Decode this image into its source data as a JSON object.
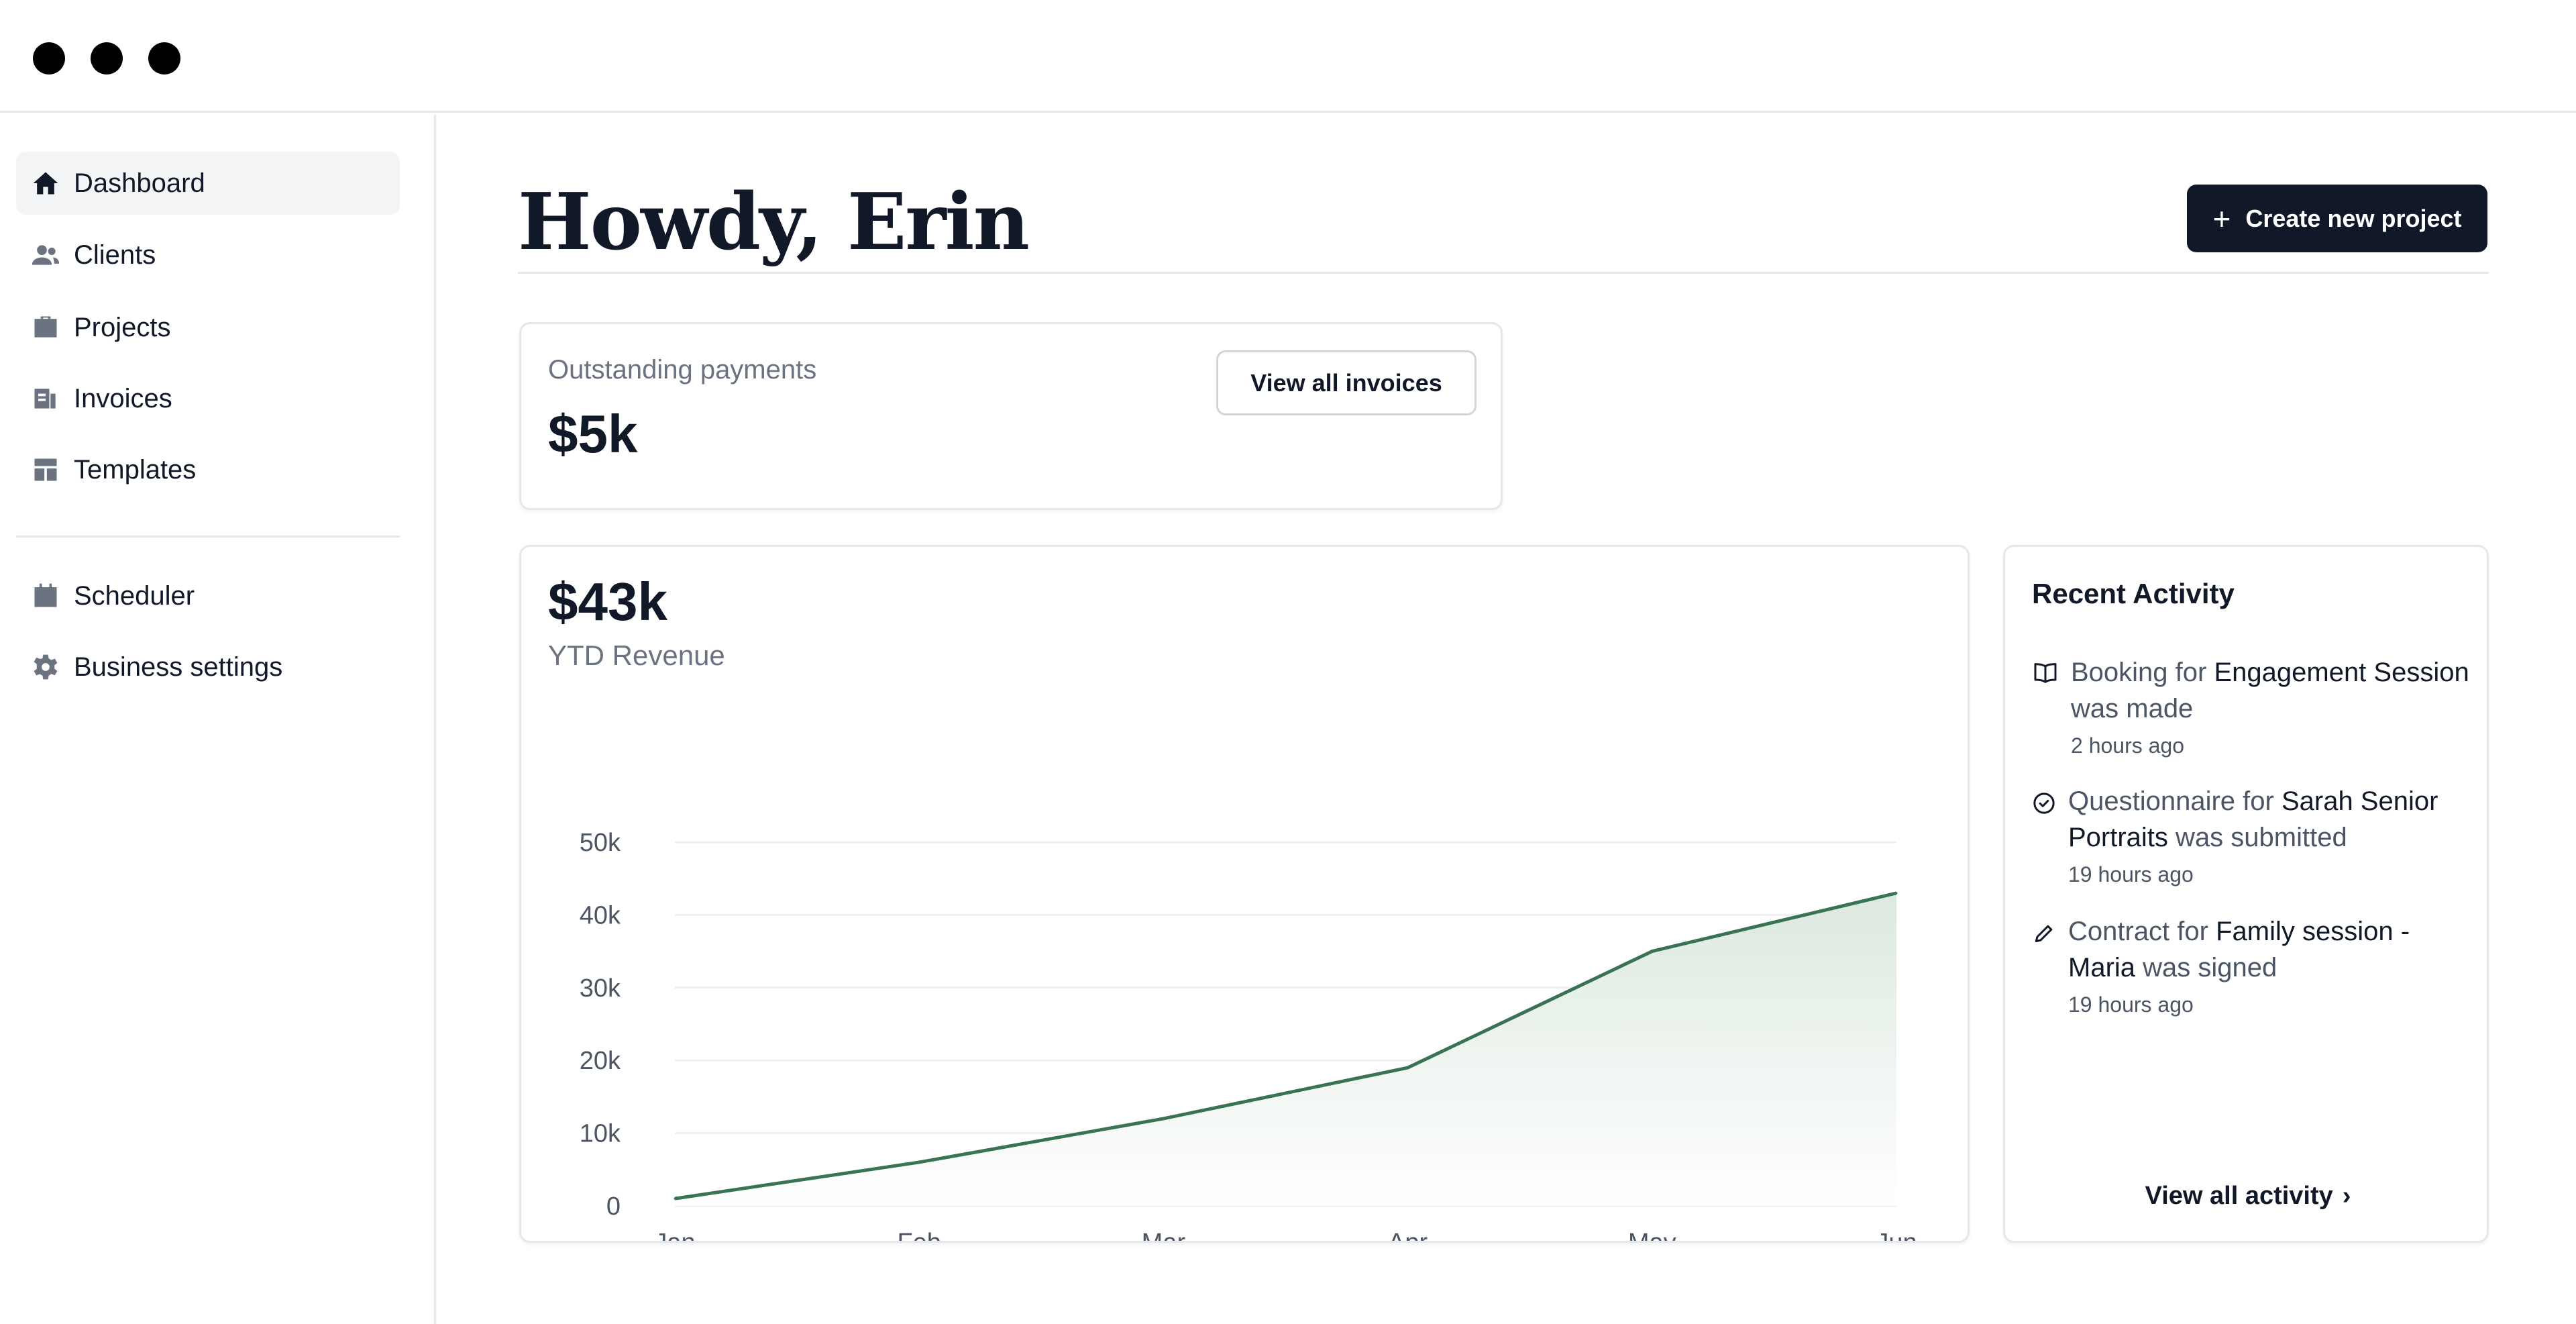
{
  "window": {
    "controls": [
      "close",
      "minimize",
      "maximize"
    ]
  },
  "sidebar": {
    "items": [
      {
        "label": "Dashboard",
        "icon": "home-icon",
        "active": true
      },
      {
        "label": "Clients",
        "icon": "users-icon"
      },
      {
        "label": "Projects",
        "icon": "briefcase-icon"
      },
      {
        "label": "Invoices",
        "icon": "invoice-icon"
      },
      {
        "label": "Templates",
        "icon": "template-icon"
      },
      {
        "label": "Scheduler",
        "icon": "calendar-icon"
      },
      {
        "label": "Business settings",
        "icon": "gear-icon"
      }
    ]
  },
  "header": {
    "greeting": "Howdy, Erin",
    "create_button": "Create new project"
  },
  "payments": {
    "label": "Outstanding payments",
    "value": "$5k",
    "button": "View all invoices"
  },
  "revenue": {
    "value": "$43k",
    "label": "YTD Revenue"
  },
  "chart_data": {
    "type": "area",
    "categories": [
      "Jan",
      "Feb",
      "Mar",
      "Apr",
      "May",
      "Jun"
    ],
    "values": [
      1000,
      6000,
      12000,
      19000,
      35000,
      43000
    ],
    "ylim": [
      0,
      50000
    ],
    "yticks": [
      "0",
      "10k",
      "20k",
      "30k",
      "40k",
      "50k"
    ],
    "grid": true,
    "line_color": "#3a7353",
    "fill_color": "#e6efe8"
  },
  "activity": {
    "title": "Recent Activity",
    "items": [
      {
        "icon": "book-icon",
        "pre": "Booking for ",
        "em": "Engagement Session",
        "post": " was made",
        "time": "2 hours ago"
      },
      {
        "icon": "check-circle-icon",
        "pre": "Questionnaire for ",
        "em": "Sarah Senior Portraits",
        "post": " was submitted",
        "time": "19 hours ago"
      },
      {
        "icon": "pencil-icon",
        "pre": "Contract for ",
        "em": "Family session - Maria",
        "post": " was signed",
        "time": "19 hours ago"
      }
    ],
    "view_all": "View all activity"
  }
}
